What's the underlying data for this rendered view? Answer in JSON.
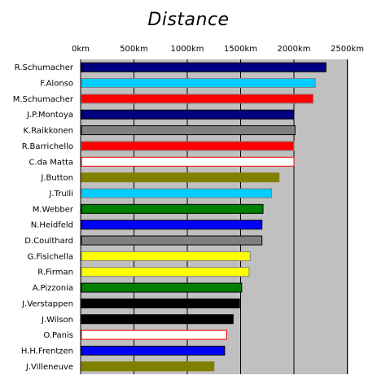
{
  "chart_data": {
    "type": "bar",
    "orientation": "horizontal",
    "title": "Distance",
    "xlabel": "",
    "ylabel": "",
    "x_ticks": [
      "0km",
      "500km",
      "1000km",
      "1500km",
      "2000km",
      "2500km"
    ],
    "xlim": [
      0,
      2500
    ],
    "grid": true,
    "plot_background": "#c0c0c0",
    "categories": [
      "R.Schumacher",
      "F.Alonso",
      "M.Schumacher",
      "J.P.Montoya",
      "K.Raikkonen",
      "R.Barrichello",
      "C.da Matta",
      "J.Button",
      "J.Trulli",
      "M.Webber",
      "N.Heidfeld",
      "D.Coulthard",
      "G.Fisichella",
      "R.Firman",
      "A.Pizzonia",
      "J.Verstappen",
      "J.Wilson",
      "O.Panis",
      "H.H.Frentzen",
      "J.Villeneuve"
    ],
    "values": [
      2300,
      2200,
      2180,
      2000,
      2010,
      2000,
      2000,
      1860,
      1790,
      1710,
      1700,
      1700,
      1590,
      1580,
      1510,
      1490,
      1430,
      1370,
      1350,
      1250
    ],
    "bar_fills": [
      "#000080",
      "#00ccff",
      "#ff0000",
      "#000080",
      "#808080",
      "#ff0000",
      "#ffffff",
      "#808000",
      "#00ccff",
      "#008000",
      "#0000ff",
      "#808080",
      "#ffff00",
      "#ffff00",
      "#008000",
      "#000000",
      "#000000",
      "#ffffff",
      "#0000ff",
      "#808000"
    ],
    "bar_outlines": [
      "#000000",
      "#808080",
      "#808080",
      "#000000",
      "#000000",
      "#808080",
      "#ff0000",
      "#808000",
      "#808080",
      "#000000",
      "#000000",
      "#000000",
      "#808080",
      "#808080",
      "#000000",
      "#000000",
      "#000000",
      "#ff0000",
      "#000000",
      "#808000"
    ]
  }
}
